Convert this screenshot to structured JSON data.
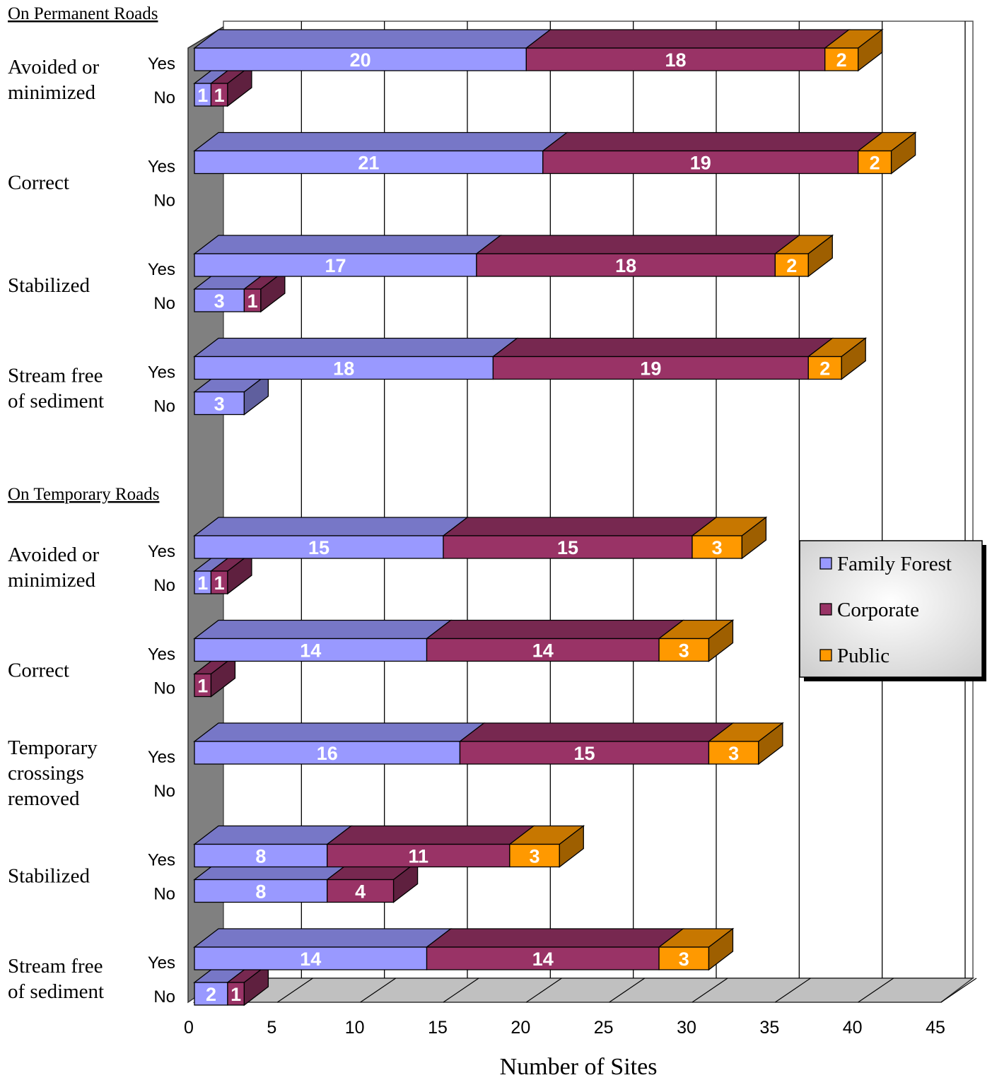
{
  "chart_data": {
    "type": "bar",
    "orientation": "horizontal",
    "stacked": true,
    "three_d": true,
    "xlabel": "Number of Sites",
    "ylabel": "",
    "xlim": [
      0,
      45
    ],
    "x_ticks": [
      0,
      5,
      10,
      15,
      20,
      25,
      30,
      35,
      40,
      45
    ],
    "grid": true,
    "legend_position": "right",
    "series": [
      {
        "name": "Family Forest",
        "color": "#9999ff"
      },
      {
        "name": "Corporate",
        "color": "#993366"
      },
      {
        "name": "Public",
        "color": "#ff9900"
      }
    ],
    "sections": [
      {
        "title": "On Permanent Roads",
        "groups": [
          {
            "label": "Avoided or minimized",
            "rows": [
              {
                "answer": "Yes",
                "values": [
                  20,
                  18,
                  2
                ]
              },
              {
                "answer": "No",
                "values": [
                  1,
                  1,
                  0
                ]
              }
            ]
          },
          {
            "label": "Correct",
            "rows": [
              {
                "answer": "Yes",
                "values": [
                  21,
                  19,
                  2
                ]
              },
              {
                "answer": "No",
                "values": [
                  0,
                  0,
                  0
                ]
              }
            ]
          },
          {
            "label": "Stabilized",
            "rows": [
              {
                "answer": "Yes",
                "values": [
                  17,
                  18,
                  2
                ]
              },
              {
                "answer": "No",
                "values": [
                  3,
                  1,
                  0
                ]
              }
            ]
          },
          {
            "label": "Stream free of sediment",
            "rows": [
              {
                "answer": "Yes",
                "values": [
                  18,
                  19,
                  2
                ]
              },
              {
                "answer": "No",
                "values": [
                  3,
                  0,
                  0
                ]
              }
            ]
          }
        ]
      },
      {
        "title": "On Temporary Roads",
        "groups": [
          {
            "label": "Avoided or minimized",
            "rows": [
              {
                "answer": "Yes",
                "values": [
                  15,
                  15,
                  3
                ]
              },
              {
                "answer": "No",
                "values": [
                  1,
                  1,
                  0
                ]
              }
            ]
          },
          {
            "label": "Correct",
            "rows": [
              {
                "answer": "Yes",
                "values": [
                  14,
                  14,
                  3
                ]
              },
              {
                "answer": "No",
                "values": [
                  0,
                  1,
                  0
                ]
              }
            ]
          },
          {
            "label": "Temporary crossings removed",
            "rows": [
              {
                "answer": "Yes",
                "values": [
                  16,
                  15,
                  3
                ]
              },
              {
                "answer": "No",
                "values": [
                  0,
                  0,
                  0
                ]
              }
            ]
          },
          {
            "label": "Stabilized",
            "rows": [
              {
                "answer": "Yes",
                "values": [
                  8,
                  11,
                  3
                ]
              },
              {
                "answer": "No",
                "values": [
                  8,
                  4,
                  0
                ]
              }
            ]
          },
          {
            "label": "Stream free of sediment",
            "rows": [
              {
                "answer": "Yes",
                "values": [
                  14,
                  14,
                  3
                ]
              },
              {
                "answer": "No",
                "values": [
                  2,
                  1,
                  0
                ]
              }
            ]
          }
        ]
      }
    ]
  }
}
